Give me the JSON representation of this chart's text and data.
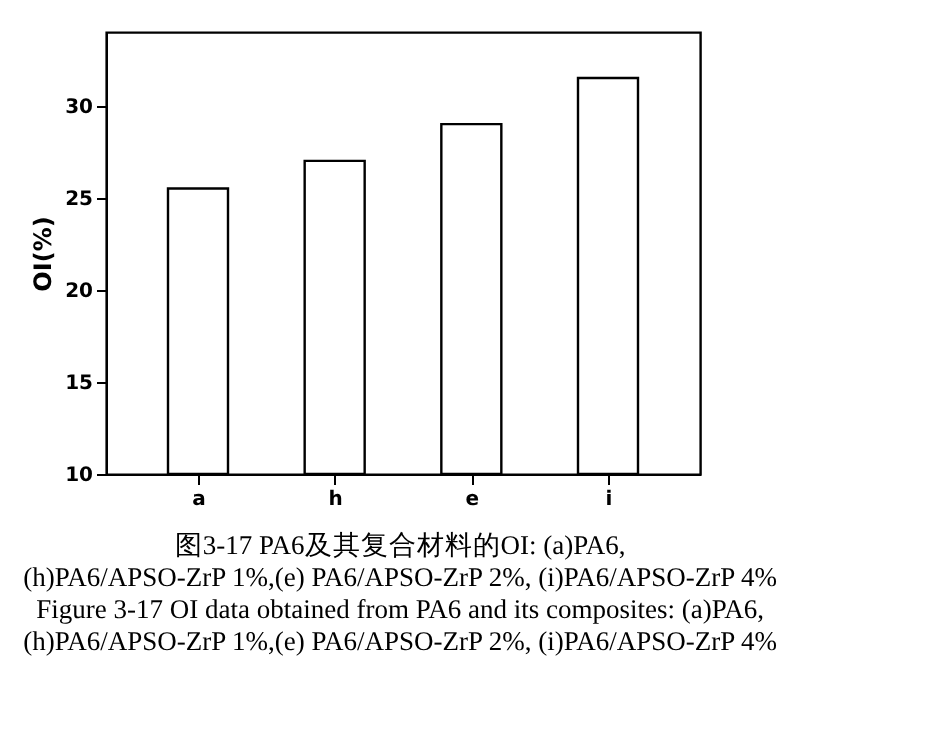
{
  "chart_data": {
    "type": "bar",
    "ylabel": "OI(%)",
    "categories": [
      "a",
      "h",
      "e",
      "i"
    ],
    "values": [
      25.5,
      27,
      29,
      31.5
    ],
    "color": "#ffffff",
    "ylim": [
      10,
      34
    ],
    "yticks": [
      10,
      15,
      20,
      25,
      30
    ],
    "grid": false,
    "annotations": [
      "图3-17 PA6及其复合材料的OI: (a)PA6,",
      "(h)PA6/APSO-ZrP 1%,(e) PA6/APSO-ZrP 2%, (i)PA6/APSO-ZrP 4%",
      "Figure 3-17 OI data obtained from PA6 and its composites: (a)PA6,",
      "(h)PA6/APSO-ZrP 1%,(e) PA6/APSO-ZrP 2%, (i)PA6/APSO-ZrP 4%"
    ]
  }
}
